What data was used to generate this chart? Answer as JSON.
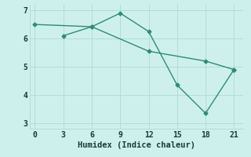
{
  "line1_x": [
    0,
    6,
    12,
    18,
    21
  ],
  "line1_y": [
    6.5,
    6.42,
    5.55,
    5.2,
    4.9
  ],
  "line2_x": [
    3,
    6,
    9,
    12,
    15,
    18,
    21
  ],
  "line2_y": [
    6.1,
    6.42,
    6.9,
    6.25,
    4.35,
    3.35,
    4.9
  ],
  "line_color": "#2e8b7a",
  "bg_color": "#cef0ec",
  "grid_color": "#b0ddd8",
  "xlabel": "Humidex (Indice chaleur)",
  "xlim": [
    -0.5,
    22
  ],
  "ylim": [
    2.8,
    7.2
  ],
  "xticks": [
    0,
    3,
    6,
    9,
    12,
    15,
    18,
    21
  ],
  "yticks": [
    3,
    4,
    5,
    6,
    7
  ],
  "marker": "D",
  "markersize": 2.5,
  "linewidth": 1.0,
  "xlabel_fontsize": 7.5,
  "tick_fontsize": 7
}
